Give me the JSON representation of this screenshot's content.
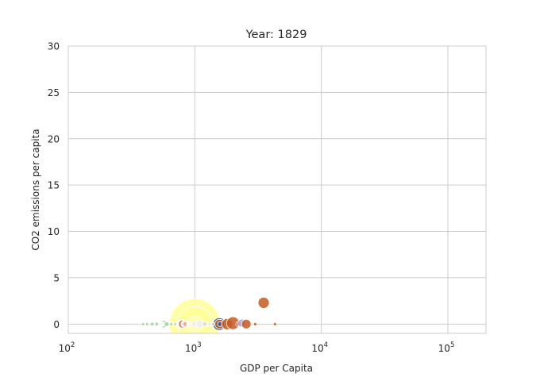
{
  "chart_data": {
    "type": "scatter",
    "title": "Year: 1829",
    "xlabel": "GDP per Capita",
    "ylabel": "CO2 emissions per capita",
    "x_scale": "log",
    "xlim": [
      100,
      200000
    ],
    "ylim": [
      -1,
      30
    ],
    "x_ticks": [
      {
        "value": 100,
        "base": "10",
        "exp": "2"
      },
      {
        "value": 1000,
        "base": "10",
        "exp": "3"
      },
      {
        "value": 10000,
        "base": "10",
        "exp": "4"
      },
      {
        "value": 100000,
        "base": "10",
        "exp": "5"
      }
    ],
    "y_ticks": [
      {
        "value": 0,
        "label": "0"
      },
      {
        "value": 5,
        "label": "5"
      },
      {
        "value": 10,
        "label": "10"
      },
      {
        "value": 15,
        "label": "15"
      },
      {
        "value": 20,
        "label": "20"
      },
      {
        "value": 25,
        "label": "25"
      },
      {
        "value": 30,
        "label": "30"
      }
    ],
    "grid": true,
    "legend": "none",
    "points": [
      {
        "x": 1000,
        "y": 0.0,
        "size": 32,
        "color": "#ffff99"
      },
      {
        "x": 1000,
        "y": 0.0,
        "size": 22,
        "color": "#ffff99"
      },
      {
        "x": 1000,
        "y": 0.0,
        "size": 10,
        "color": "#ffffb3"
      },
      {
        "x": 1000,
        "y": 0.0,
        "size": 4,
        "color": "#eeeeee"
      },
      {
        "x": 1100,
        "y": 0.0,
        "size": 5,
        "color": "#eeeeee"
      },
      {
        "x": 1200,
        "y": 0.0,
        "size": 3,
        "color": "#dddddd"
      },
      {
        "x": 3500,
        "y": 2.3,
        "size": 7,
        "color": "#c55a22"
      },
      {
        "x": 1560,
        "y": 0.0,
        "size": 8,
        "color": "#2c5aa0"
      },
      {
        "x": 1570,
        "y": 0.0,
        "size": 6,
        "color": "#c55a22"
      },
      {
        "x": 1580,
        "y": 0.0,
        "size": 3,
        "color": "#2c5aa0"
      },
      {
        "x": 1800,
        "y": 0.0,
        "size": 7,
        "color": "#c55a22"
      },
      {
        "x": 2000,
        "y": 0.1,
        "size": 8,
        "color": "#c55a22"
      },
      {
        "x": 2200,
        "y": 0.0,
        "size": 3,
        "color": "#c55a22"
      },
      {
        "x": 2350,
        "y": 0.1,
        "size": 5,
        "color": "#b39ddb"
      },
      {
        "x": 2550,
        "y": 0.0,
        "size": 6,
        "color": "#c55a22"
      },
      {
        "x": 3000,
        "y": 0.0,
        "size": 2,
        "color": "#c55a22"
      },
      {
        "x": 4300,
        "y": 0.0,
        "size": 2,
        "color": "#c55a22"
      },
      {
        "x": 780,
        "y": 0.0,
        "size": 6,
        "color": "#ffffff"
      },
      {
        "x": 800,
        "y": 0.0,
        "size": 5,
        "color": "#c55a22"
      },
      {
        "x": 820,
        "y": 0.0,
        "size": 4,
        "color": "#ffffff"
      },
      {
        "x": 840,
        "y": 0.0,
        "size": 3,
        "color": "#ef9a9a"
      },
      {
        "x": 560,
        "y": 0.0,
        "size": 5,
        "color": "#a5d6a7"
      },
      {
        "x": 540,
        "y": 0.0,
        "size": 4,
        "color": "#ffffff"
      },
      {
        "x": 600,
        "y": 0.0,
        "size": 3,
        "color": "#a5d6a7"
      },
      {
        "x": 500,
        "y": 0.0,
        "size": 2.5,
        "color": "#a5d6a7"
      },
      {
        "x": 460,
        "y": 0.0,
        "size": 2.5,
        "color": "#a5d6a7"
      },
      {
        "x": 420,
        "y": 0.0,
        "size": 2,
        "color": "#a5d6a7"
      },
      {
        "x": 390,
        "y": 0.0,
        "size": 2,
        "color": "#a5d6a7"
      },
      {
        "x": 350,
        "y": 0.0,
        "size": 1.5,
        "color": "#cccccc"
      },
      {
        "x": 650,
        "y": 0.0,
        "size": 2,
        "color": "#a5d6a7"
      },
      {
        "x": 700,
        "y": 0.0,
        "size": 2,
        "color": "#cccccc"
      },
      {
        "x": 900,
        "y": 0.0,
        "size": 3,
        "color": "#ffffff"
      },
      {
        "x": 1300,
        "y": 0.0,
        "size": 3,
        "color": "#eeeeee"
      },
      {
        "x": 1400,
        "y": 0.0,
        "size": 2,
        "color": "#cccccc"
      }
    ]
  }
}
